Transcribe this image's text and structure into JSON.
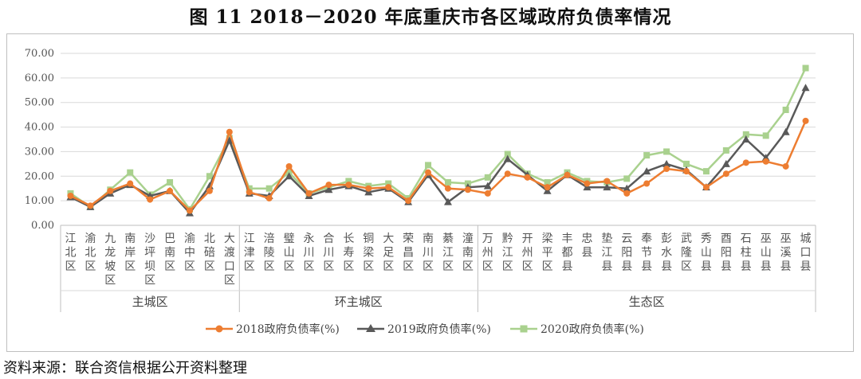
{
  "title": "图 11    2018－2020 年底重庆市各区域政府负债率情况",
  "source": "资料来源：联合资信根据公开资料整理",
  "chart_data": {
    "type": "line",
    "ylim": [
      0,
      70
    ],
    "yticks": [
      "0.00",
      "10.00",
      "20.00",
      "30.00",
      "40.00",
      "50.00",
      "60.00",
      "70.00"
    ],
    "grid": true,
    "legend_position": "bottom",
    "categories": [
      "江北区",
      "渝北区",
      "九龙坡区",
      "南岸区",
      "沙坪坝区",
      "巴南区",
      "渝中区",
      "北碚区",
      "大渡口区",
      "江津区",
      "涪陵区",
      "璧山区",
      "永川区",
      "合川区",
      "长寿区",
      "铜梁区",
      "大足区",
      "荣昌区",
      "南川区",
      "綦江区",
      "潼南区",
      "万州区",
      "黔江区",
      "开州区",
      "梁平区",
      "丰都县",
      "忠县",
      "垫江县",
      "云阳县",
      "奉节县",
      "彭水县",
      "武隆区",
      "秀山县",
      "酉阳县",
      "石柱县",
      "巫山县",
      "巫溪县",
      "城口县"
    ],
    "groups": [
      {
        "name": "主城区",
        "count": 9
      },
      {
        "name": "环主城区",
        "count": 12
      },
      {
        "name": "生态区",
        "count": 17
      }
    ],
    "series": [
      {
        "name": "2018政府负债率(%)",
        "color": "#ed7d31",
        "marker": "circle",
        "values": [
          12,
          8,
          14,
          17,
          10.5,
          14,
          6,
          14,
          38,
          13.5,
          11,
          24,
          13,
          16.5,
          16.5,
          15,
          15.5,
          10,
          21.5,
          15,
          14.5,
          13,
          21,
          19.5,
          15.5,
          20.5,
          17,
          18,
          13,
          17,
          23,
          22,
          15.5,
          21,
          25.5,
          26,
          24,
          42.5
        ]
      },
      {
        "name": "2019政府负债率(%)",
        "color": "#595959",
        "marker": "triangle",
        "values": [
          11.5,
          7.5,
          13,
          16.5,
          12,
          14,
          5,
          16,
          34.5,
          13,
          12,
          20,
          12,
          14.5,
          16,
          13.5,
          15,
          9.5,
          20.5,
          9.5,
          15.5,
          16,
          27,
          20.5,
          14,
          20.5,
          15.5,
          15.5,
          15,
          22,
          25,
          22.5,
          15.5,
          25,
          35,
          27.5,
          38,
          56
        ]
      },
      {
        "name": "2020政府负债率(%)",
        "color": "#a9d18e",
        "marker": "square",
        "values": [
          13,
          7.5,
          14.5,
          21.5,
          12.5,
          17.5,
          6.5,
          20,
          35.5,
          15,
          15,
          21.5,
          13,
          15.5,
          18,
          16,
          17,
          11,
          24.5,
          17.5,
          17,
          19.5,
          29,
          21,
          17.5,
          21.5,
          18,
          17.5,
          19,
          28.5,
          30,
          25,
          22,
          30.5,
          37,
          36.5,
          47,
          64
        ]
      }
    ]
  }
}
